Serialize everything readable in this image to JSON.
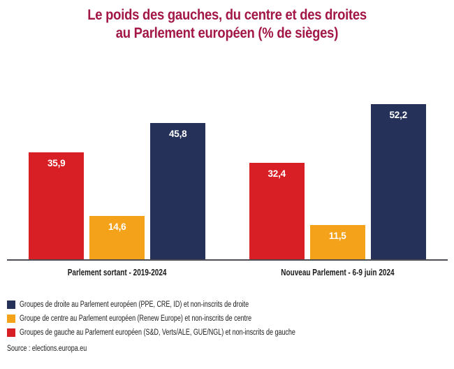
{
  "title": {
    "line1": "Le poids des gauches, du centre et des droites",
    "line2": "au Parlement européen (% de sièges)"
  },
  "chart_data": {
    "type": "bar",
    "categories": [
      "Parlement sortant - 2019-2024",
      "Nouveau Parlement - 6-9 juin 2024"
    ],
    "series": [
      {
        "name": "Groupes de gauche au Parlement européen (S&D, Verts/ALE, GUE/NGL) et non-inscrits de gauche",
        "color": "#D91F26",
        "values": [
          35.9,
          32.4
        ],
        "labels": [
          "35,9",
          "32,4"
        ]
      },
      {
        "name": "Groupe de centre au Parlement européen (Renew Europe) et non-inscrits de centre",
        "color": "#F5A21B",
        "values": [
          14.6,
          11.5
        ],
        "labels": [
          "14,6",
          "11,5"
        ]
      },
      {
        "name": "Groupes de droite au Parlement européen (PPE, CRE, ID) et non-inscrits de droite",
        "color": "#263159",
        "values": [
          45.8,
          52.2
        ],
        "labels": [
          "45,8",
          "52,2"
        ]
      }
    ],
    "ylabel": "",
    "xlabel": "",
    "ylim": [
      0,
      55
    ],
    "grid": false,
    "legend_position": "bottom-left",
    "value_label_color": "#FFFFFF"
  },
  "legend": {
    "items": [
      {
        "label": "Groupes de droite au Parlement européen (PPE, CRE, ID) et non-inscrits de droite",
        "color": "#263159"
      },
      {
        "label": "Groupe de centre au Parlement européen (Renew Europe) et non-inscrits de centre",
        "color": "#F5A21B"
      },
      {
        "label": "Groupes de gauche au Parlement européen (S&D, Verts/ALE, GUE/NGL) et non-inscrits de gauche",
        "color": "#D91F26"
      }
    ]
  },
  "source": {
    "text": "Source : elections.europa.eu"
  },
  "colors": {
    "title": "#A21745",
    "axis": "#4D4E53",
    "background": "#FFFFFF",
    "red": "#D91F26",
    "orange": "#F5A21B",
    "navy": "#263159"
  }
}
